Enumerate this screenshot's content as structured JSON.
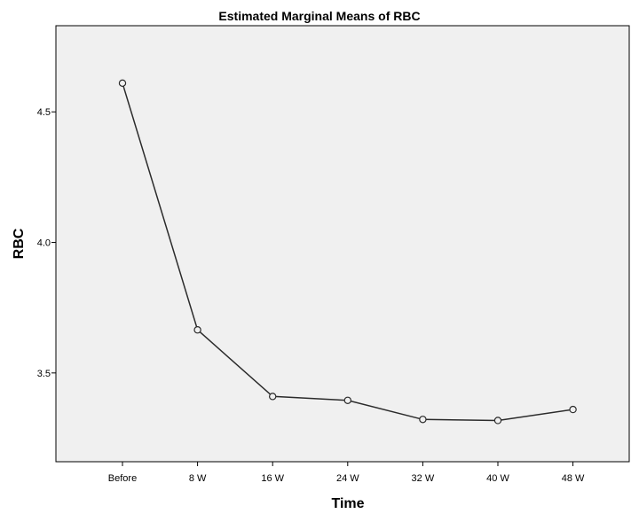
{
  "chart_data": {
    "type": "line",
    "title": "Estimated Marginal Means of RBC",
    "xlabel": "Time",
    "ylabel": "RBC",
    "categories": [
      "Before",
      "8 W",
      "16 W",
      "24 W",
      "32 W",
      "40 W",
      "48 W"
    ],
    "series": [
      {
        "values": [
          4.61,
          3.665,
          3.41,
          3.395,
          3.322,
          3.318,
          3.36
        ]
      }
    ],
    "ylim": [
      3.16,
      4.83
    ],
    "yticks": [
      {
        "value": 3.5,
        "label": "3.5"
      },
      {
        "value": 4.0,
        "label": "4.0"
      },
      {
        "value": 4.5,
        "label": "4.5"
      }
    ],
    "grid": false,
    "legend": "none",
    "colors": {
      "plot_background": "#f0f0f0",
      "line": "#2b2b2b",
      "marker_fill": "#f0f0f0"
    }
  }
}
